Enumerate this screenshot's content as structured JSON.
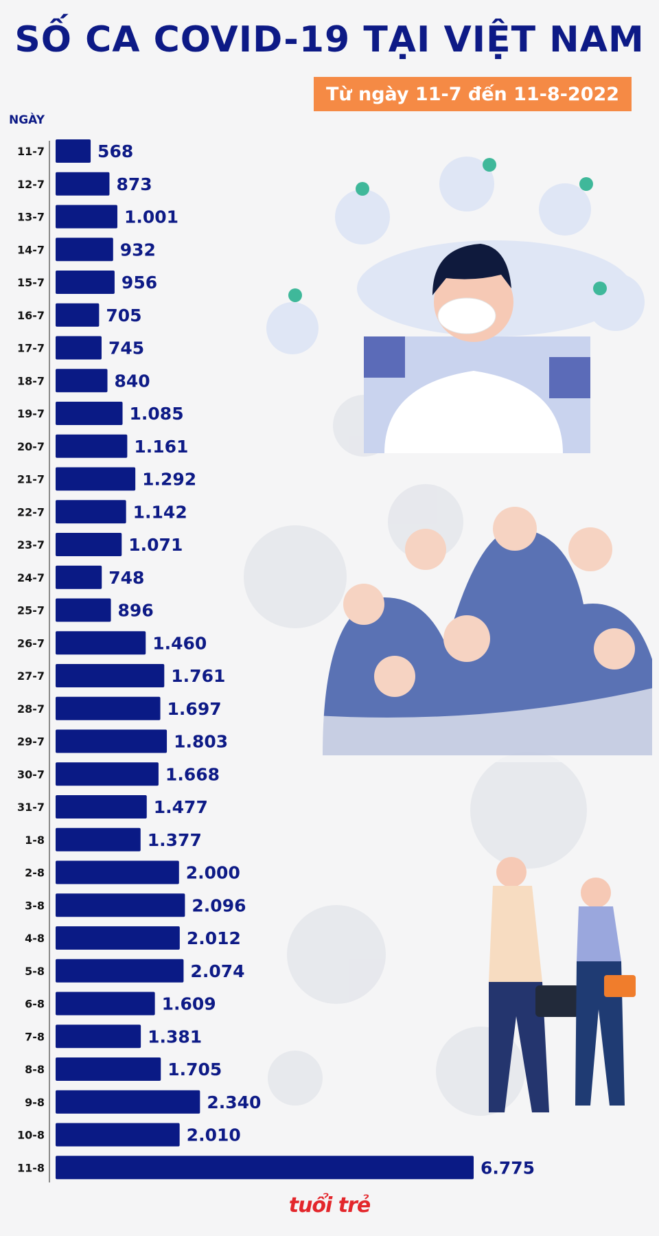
{
  "title": "SỐ CA COVID-19 TẠI VIỆT NAM",
  "subtitle": "Từ ngày 11-7 đến 11-8-2022",
  "logo_text": "tuổi trẻ",
  "colors": {
    "bar": "#0a1a85",
    "title": "#0d1a86",
    "subtitle_bg": "#f58a45",
    "logo": "#e3262b"
  },
  "chart_data": {
    "type": "bar",
    "orientation": "horizontal",
    "xlabel": "",
    "ylabel": "NGÀY",
    "categories": [
      "11-7",
      "12-7",
      "13-7",
      "14-7",
      "15-7",
      "16-7",
      "17-7",
      "18-7",
      "19-7",
      "20-7",
      "21-7",
      "22-7",
      "23-7",
      "24-7",
      "25-7",
      "26-7",
      "27-7",
      "28-7",
      "29-7",
      "30-7",
      "31-7",
      "1-8",
      "2-8",
      "3-8",
      "4-8",
      "5-8",
      "6-8",
      "7-8",
      "8-8",
      "9-8",
      "10-8",
      "11-8"
    ],
    "values": [
      568,
      873,
      1001,
      932,
      956,
      705,
      745,
      840,
      1085,
      1161,
      1292,
      1142,
      1071,
      748,
      896,
      1460,
      1761,
      1697,
      1803,
      1668,
      1477,
      1377,
      2000,
      2096,
      2012,
      2074,
      1609,
      1381,
      1705,
      2340,
      2010,
      6775
    ],
    "value_labels": [
      "568",
      "873",
      "1.001",
      "932",
      "956",
      "705",
      "745",
      "840",
      "1.085",
      "1.161",
      "1.292",
      "1.142",
      "1.071",
      "748",
      "896",
      "1.460",
      "1.761",
      "1.697",
      "1.803",
      "1.668",
      "1.477",
      "1.377",
      "2.000",
      "2.096",
      "2.012",
      "2.074",
      "1.609",
      "1.381",
      "1.705",
      "2.340",
      "2.010",
      "6.775"
    ],
    "grid": false,
    "legend": "none"
  }
}
